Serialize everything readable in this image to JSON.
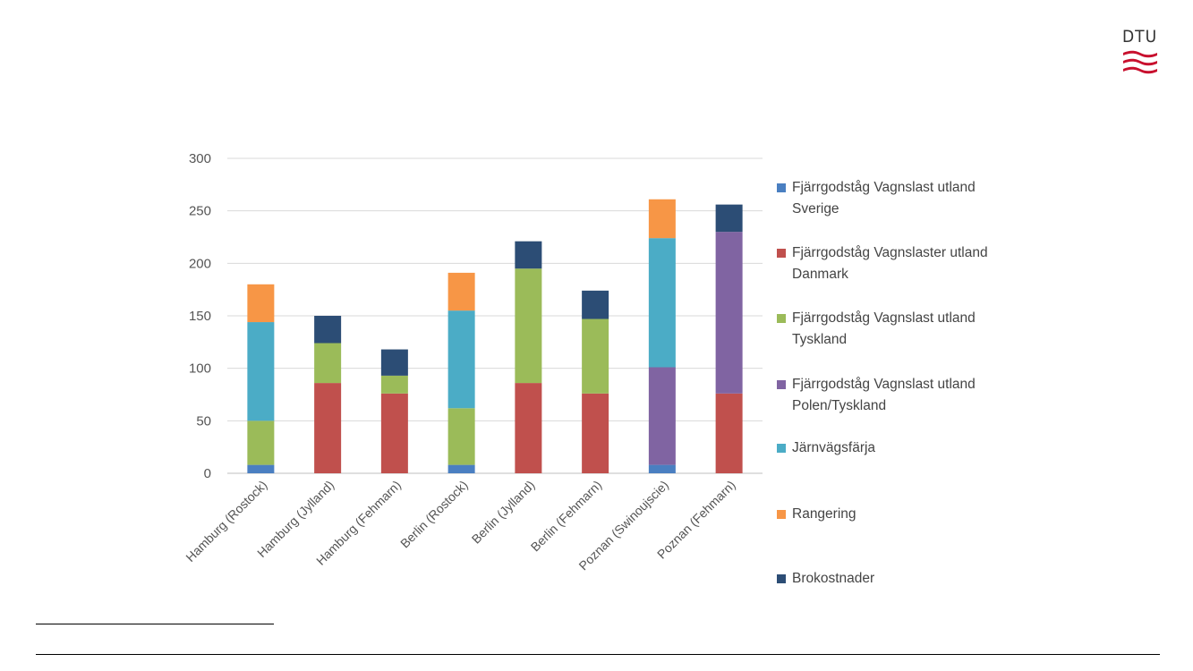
{
  "logo": {
    "text": "DTU",
    "mark": "dtu-wave-logo"
  },
  "colors": {
    "sverige": "#4a7fc1",
    "danmark": "#c0504d",
    "tyskland": "#9bbb59",
    "polen": "#8064a2",
    "farja": "#4bacc6",
    "rangering": "#f79646",
    "bro": "#2c4d75"
  },
  "chart_data": {
    "type": "bar",
    "stacked": true,
    "title": "",
    "xlabel": "",
    "ylabel": "",
    "ylim": [
      0,
      300
    ],
    "yticks": [
      0,
      50,
      100,
      150,
      200,
      250,
      300
    ],
    "grid": true,
    "legend_position": "right",
    "categories": [
      "Hamburg (Rostock)",
      "Hamburg (Jylland)",
      "Hamburg (Fehmarn)",
      "Berlin (Rostock)",
      "Berlin (Jylland)",
      "Berlin (Fehmarn)",
      "Poznan (Swinoujscie)",
      "Poznan (Fehmarn)"
    ],
    "series": [
      {
        "name": "Fjärrgodståg Vagnslast utland Sverige",
        "color_key": "sverige",
        "values": [
          8,
          0,
          0,
          8,
          0,
          0,
          8,
          0
        ]
      },
      {
        "name": "Fjärrgodståg Vagnslaster utland Danmark",
        "color_key": "danmark",
        "values": [
          0,
          86,
          76,
          0,
          86,
          76,
          0,
          76
        ]
      },
      {
        "name": "Fjärrgodståg Vagnslast utland Tyskland",
        "color_key": "tyskland",
        "values": [
          42,
          38,
          17,
          54,
          109,
          71,
          0,
          0
        ]
      },
      {
        "name": "Fjärrgodståg Vagnslast utland Polen/Tyskland",
        "color_key": "polen",
        "values": [
          0,
          0,
          0,
          0,
          0,
          0,
          93,
          154
        ]
      },
      {
        "name": "Järnvägsfärja",
        "color_key": "farja",
        "values": [
          94,
          0,
          0,
          93,
          0,
          0,
          123,
          0
        ]
      },
      {
        "name": "Rangering",
        "color_key": "rangering",
        "values": [
          36,
          0,
          0,
          36,
          0,
          0,
          37,
          0
        ]
      },
      {
        "name": "Brokostnader",
        "color_key": "bro",
        "values": [
          0,
          26,
          25,
          0,
          26,
          27,
          0,
          26
        ]
      }
    ]
  },
  "legend": [
    {
      "line1": "Fjärrgodståg Vagnslast utland",
      "line2": "Sverige",
      "color_key": "sverige"
    },
    {
      "line1": "Fjärrgodståg Vagnslaster utland",
      "line2": "Danmark",
      "color_key": "danmark"
    },
    {
      "line1": "Fjärrgodståg Vagnslast utland",
      "line2": "Tyskland",
      "color_key": "tyskland"
    },
    {
      "line1": "Fjärrgodståg Vagnslast utland",
      "line2": "Polen/Tyskland",
      "color_key": "polen"
    },
    {
      "line1": "Järnvägsfärja",
      "line2": "",
      "color_key": "farja"
    },
    {
      "line1": "Rangering",
      "line2": "",
      "color_key": "rangering"
    },
    {
      "line1": "Brokostnader",
      "line2": "",
      "color_key": "bro"
    }
  ]
}
